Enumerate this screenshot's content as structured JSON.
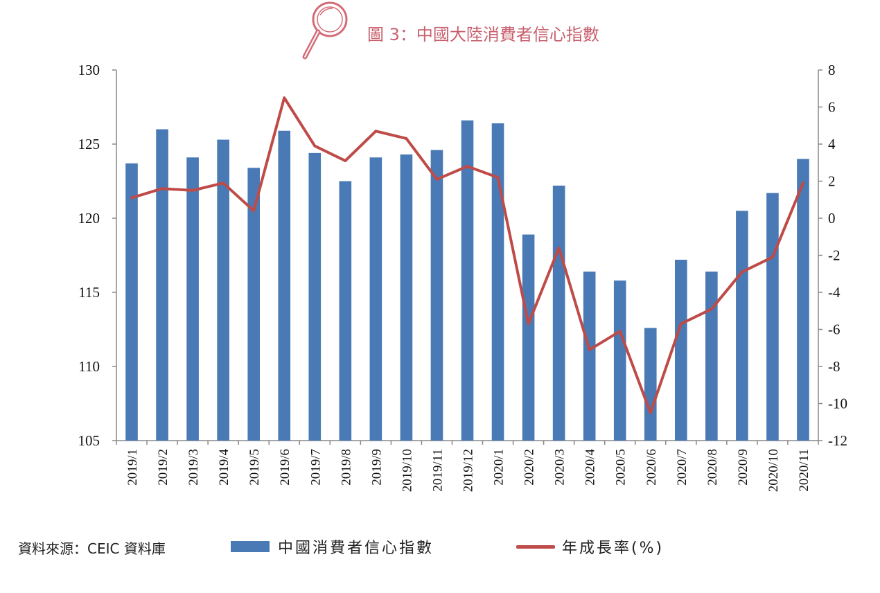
{
  "title": "圖 3：中國大陸消費者信心指數",
  "source": "資料來源：CEIC 資料庫",
  "colors": {
    "bar": "#4a7ab5",
    "line": "#be4b48",
    "title": "#c8606e"
  },
  "chart_data": {
    "type": "bar",
    "categories": [
      "2019/1",
      "2019/2",
      "2019/3",
      "2019/4",
      "2019/5",
      "2019/6",
      "2019/7",
      "2019/8",
      "2019/9",
      "2019/10",
      "2019/11",
      "2019/12",
      "2020/1",
      "2020/2",
      "2020/3",
      "2020/4",
      "2020/5",
      "2020/6",
      "2020/7",
      "2020/8",
      "2020/9",
      "2020/10",
      "2020/11"
    ],
    "series": [
      {
        "name": "中國消費者信心指數",
        "type": "bar",
        "axis": "left",
        "values": [
          123.7,
          126.0,
          124.1,
          125.3,
          123.4,
          125.9,
          124.4,
          122.5,
          124.1,
          124.3,
          124.6,
          126.6,
          126.4,
          118.9,
          122.2,
          116.4,
          115.8,
          112.6,
          117.2,
          116.4,
          120.5,
          121.7,
          124.0
        ]
      },
      {
        "name": "年成長率(%)",
        "type": "line",
        "axis": "right",
        "values": [
          1.1,
          1.6,
          1.5,
          1.9,
          0.4,
          6.5,
          3.9,
          3.1,
          4.7,
          4.3,
          2.1,
          2.8,
          2.2,
          -5.7,
          -1.6,
          -7.1,
          -6.1,
          -10.5,
          -5.7,
          -4.9,
          -2.9,
          -2.1,
          1.9
        ]
      }
    ],
    "ylim_left": [
      105,
      130
    ],
    "yticks_left": [
      105,
      110,
      115,
      120,
      125,
      130
    ],
    "ylim_right": [
      -12,
      8
    ],
    "yticks_right": [
      -12,
      -10,
      -8,
      -6,
      -4,
      -2,
      0,
      2,
      4,
      6,
      8
    ],
    "right_negative_tick_color": "#c0392b",
    "grid": false,
    "legend_position": "bottom"
  }
}
